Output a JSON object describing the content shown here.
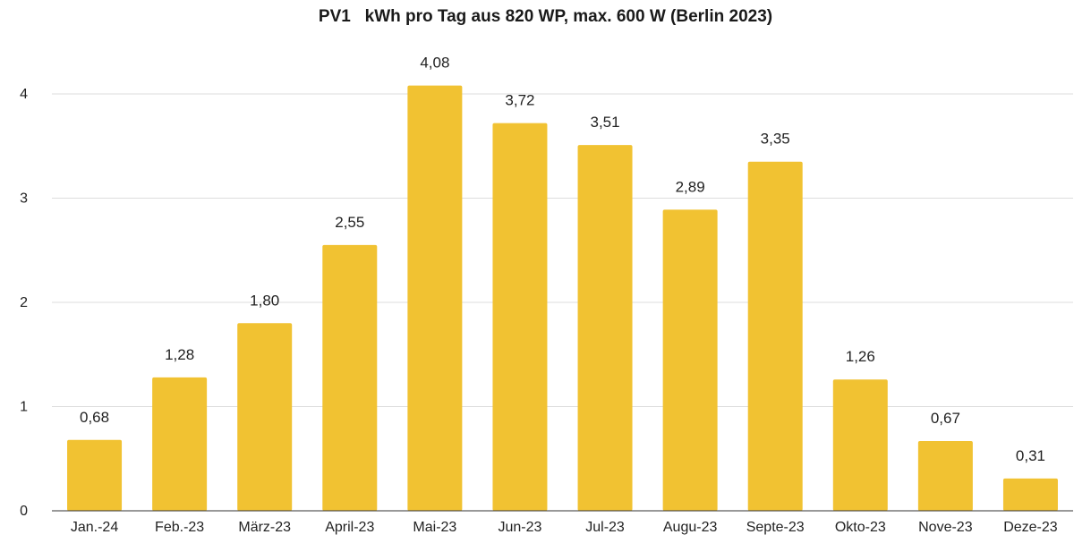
{
  "chart_data": {
    "type": "bar",
    "title": "PV1   kWh pro Tag aus 820 WP, max. 600 W (Berlin 2023)",
    "xlabel": "",
    "ylabel": "",
    "categories": [
      "Jan.-24",
      "Feb.-23",
      "März-23",
      "April-23",
      "Mai-23",
      "Jun-23",
      "Jul-23",
      "Augu-23",
      "Septe-23",
      "Okto-23",
      "Nove-23",
      "Deze-23"
    ],
    "values": [
      0.68,
      1.28,
      1.8,
      2.55,
      4.08,
      3.72,
      3.51,
      2.89,
      3.35,
      1.26,
      0.67,
      0.31
    ],
    "data_labels": [
      "0,68",
      "1,28",
      "1,80",
      "2,55",
      "4,08",
      "3,72",
      "3,51",
      "2,89",
      "3,35",
      "1,26",
      "0,67",
      "0,31"
    ],
    "y_ticks": [
      0,
      1,
      2,
      3,
      4
    ],
    "y_tick_labels": [
      "0",
      "1",
      "2",
      "3",
      "4"
    ],
    "ylim": [
      0,
      4.6
    ],
    "grid": true,
    "legend": "none",
    "colors": {
      "bar": "#F1C232",
      "grid": "#dddddd",
      "axis": "#333333",
      "text": "#222222"
    }
  }
}
